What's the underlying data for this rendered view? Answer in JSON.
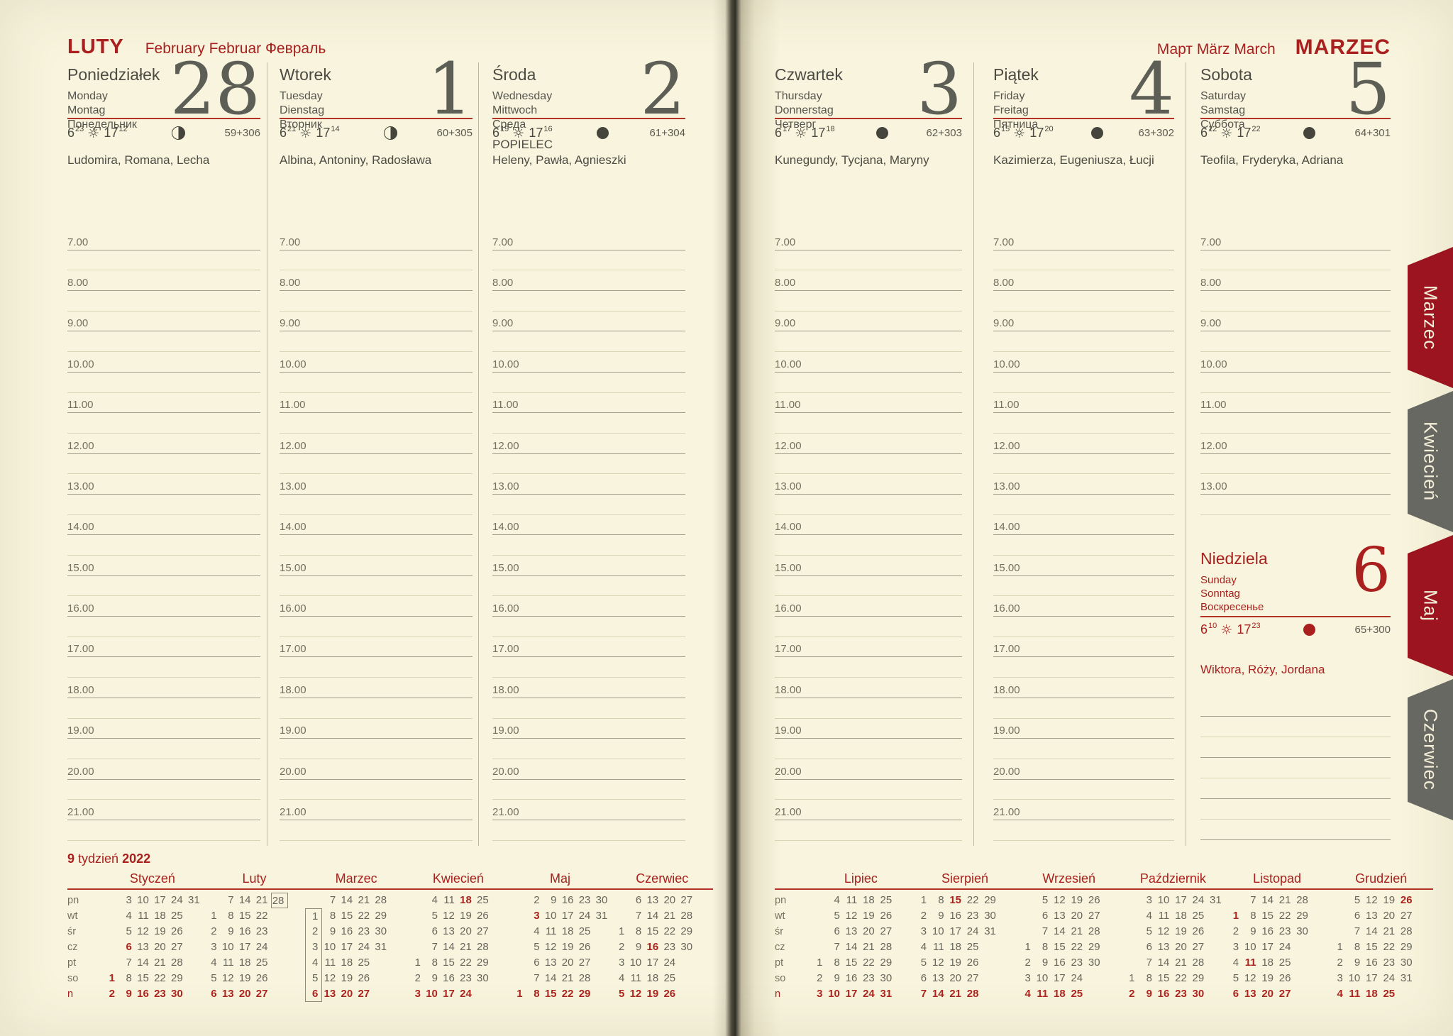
{
  "page": {
    "bg": "#f8f4dd",
    "accent": "#a9201e",
    "tab_red": "#9c1420",
    "tab_gray": "#686862"
  },
  "left_page": {
    "title": "LUTY",
    "subtitle": "February Februar Февраль",
    "week_line": {
      "number": "9",
      "word": "tydzień",
      "year": "2022"
    },
    "days": [
      {
        "key": "poniedzialek",
        "name": "Poniedziałek",
        "intl": [
          "Monday",
          "Montag",
          "Понедельник"
        ],
        "number": "28",
        "sun": {
          "rise": "6",
          "rise_m": "23",
          "set": "17",
          "set_m": "12"
        },
        "moon": "half",
        "count": "59+306",
        "holiday": "",
        "names": "Ludomira, Romana, Lecha"
      },
      {
        "key": "wtorek",
        "name": "Wtorek",
        "intl": [
          "Tuesday",
          "Dienstag",
          "Вторник"
        ],
        "number": "1",
        "sun": {
          "rise": "6",
          "rise_m": "21",
          "set": "17",
          "set_m": "14"
        },
        "moon": "half",
        "count": "60+305",
        "holiday": "",
        "names": "Albina, Antoniny, Radosława"
      },
      {
        "key": "sroda",
        "name": "Środa",
        "intl": [
          "Wednesday",
          "Mittwoch",
          "Среда"
        ],
        "number": "2",
        "sun": {
          "rise": "6",
          "rise_m": "19",
          "set": "17",
          "set_m": "16"
        },
        "moon": "new",
        "count": "61+304",
        "holiday": "POPIELEC",
        "names": "Heleny, Pawła, Agnieszki"
      }
    ],
    "mini_months": [
      {
        "name": "Styczeń",
        "rows": [
          [
            "",
            "3",
            "10",
            "17",
            "24",
            "31"
          ],
          [
            "",
            "4",
            "11",
            "18",
            "25",
            ""
          ],
          [
            "",
            "5",
            "12",
            "19",
            "26",
            ""
          ],
          [
            "",
            "6|r",
            "13",
            "20",
            "27",
            ""
          ],
          [
            "",
            "7",
            "14",
            "21",
            "28",
            ""
          ],
          [
            "1|r",
            "8",
            "15",
            "22",
            "29",
            ""
          ],
          [
            "2|r",
            "9|r",
            "16|r",
            "23|r",
            "30|r",
            ""
          ]
        ]
      },
      {
        "name": "Luty",
        "rows": [
          [
            "",
            "7",
            "14",
            "21",
            "28|s",
            ""
          ],
          [
            "1",
            "8",
            "15",
            "22",
            "",
            ""
          ],
          [
            "2",
            "9",
            "16",
            "23",
            "",
            ""
          ],
          [
            "3",
            "10",
            "17",
            "24",
            "",
            ""
          ],
          [
            "4",
            "11",
            "18",
            "25",
            "",
            ""
          ],
          [
            "5",
            "12",
            "19",
            "26",
            "",
            ""
          ],
          [
            "6|r",
            "13|r",
            "20|r",
            "27|r",
            "",
            ""
          ]
        ]
      },
      {
        "name": "Marzec",
        "rows": [
          [
            "",
            "7",
            "14",
            "21",
            "28",
            ""
          ],
          [
            "1|t",
            "8",
            "15",
            "22",
            "29",
            ""
          ],
          [
            "2|m",
            "9",
            "16",
            "23",
            "30",
            ""
          ],
          [
            "3|m",
            "10",
            "17",
            "24",
            "31",
            ""
          ],
          [
            "4|m",
            "11",
            "18",
            "25",
            "",
            ""
          ],
          [
            "5|m",
            "12",
            "19",
            "26",
            "",
            ""
          ],
          [
            "6|rb",
            "13|r",
            "20|r",
            "27|r",
            "",
            ""
          ]
        ]
      },
      {
        "name": "Kwiecień",
        "rows": [
          [
            "",
            "4",
            "11",
            "18|r",
            "25",
            ""
          ],
          [
            "",
            "5",
            "12",
            "19",
            "26",
            ""
          ],
          [
            "",
            "6",
            "13",
            "20",
            "27",
            ""
          ],
          [
            "",
            "7",
            "14",
            "21",
            "28",
            ""
          ],
          [
            "1",
            "8",
            "15",
            "22",
            "29",
            ""
          ],
          [
            "2",
            "9",
            "16",
            "23",
            "30",
            ""
          ],
          [
            "3|r",
            "10|r",
            "17|r",
            "24|r",
            "",
            ""
          ]
        ]
      },
      {
        "name": "Maj",
        "rows": [
          [
            "",
            "2",
            "9",
            "16",
            "23",
            "30"
          ],
          [
            "",
            "3|r",
            "10",
            "17",
            "24",
            "31"
          ],
          [
            "",
            "4",
            "11",
            "18",
            "25",
            ""
          ],
          [
            "",
            "5",
            "12",
            "19",
            "26",
            ""
          ],
          [
            "",
            "6",
            "13",
            "20",
            "27",
            ""
          ],
          [
            "",
            "7",
            "14",
            "21",
            "28",
            ""
          ],
          [
            "1|r",
            "8|r",
            "15|r",
            "22|r",
            "29|r",
            ""
          ]
        ]
      },
      {
        "name": "Czerwiec",
        "rows": [
          [
            "",
            "6",
            "13",
            "20",
            "27",
            ""
          ],
          [
            "",
            "7",
            "14",
            "21",
            "28",
            ""
          ],
          [
            "1",
            "8",
            "15",
            "22",
            "29",
            ""
          ],
          [
            "2",
            "9",
            "16|r",
            "23",
            "30",
            ""
          ],
          [
            "3",
            "10",
            "17",
            "24",
            "",
            ""
          ],
          [
            "4",
            "11",
            "18",
            "25",
            "",
            ""
          ],
          [
            "5|r",
            "12|r",
            "19|r",
            "26|r",
            "",
            ""
          ]
        ]
      }
    ]
  },
  "right_page": {
    "subtitle": "Март März March",
    "title": "MARZEC",
    "days": [
      {
        "key": "czwartek",
        "name": "Czwartek",
        "intl": [
          "Thursday",
          "Donnerstag",
          "Четверг"
        ],
        "number": "3",
        "sun": {
          "rise": "6",
          "rise_m": "17",
          "set": "17",
          "set_m": "18"
        },
        "moon": "new",
        "count": "62+303",
        "holiday": "",
        "names": "Kunegundy, Tycjana, Maryny"
      },
      {
        "key": "piatek",
        "name": "Piątek",
        "intl": [
          "Friday",
          "Freitag",
          "Пятница"
        ],
        "number": "4",
        "sun": {
          "rise": "6",
          "rise_m": "15",
          "set": "17",
          "set_m": "20"
        },
        "moon": "new",
        "count": "63+302",
        "holiday": "",
        "names": "Kazimierza, Eugeniusza, Łucji"
      },
      {
        "key": "sobota",
        "name": "Sobota",
        "intl": [
          "Saturday",
          "Samstag",
          "Суббота"
        ],
        "number": "5",
        "sun": {
          "rise": "6",
          "rise_m": "12",
          "set": "17",
          "set_m": "22"
        },
        "moon": "new",
        "count": "64+301",
        "holiday": "",
        "names": "Teofila, Fryderyka, Adriana"
      }
    ],
    "sunday": {
      "key": "niedziela",
      "name": "Niedziela",
      "intl": [
        "Sunday",
        "Sonntag",
        "Воскресенье"
      ],
      "number": "6",
      "sun": {
        "rise": "6",
        "rise_m": "10",
        "set": "17",
        "set_m": "23"
      },
      "moon": "new-red",
      "count": "65+300",
      "names": "Wiktora, Róży, Jordana"
    },
    "mini_months": [
      {
        "name": "Lipiec",
        "rows": [
          [
            "",
            "4",
            "11",
            "18",
            "25",
            ""
          ],
          [
            "",
            "5",
            "12",
            "19",
            "26",
            ""
          ],
          [
            "",
            "6",
            "13",
            "20",
            "27",
            ""
          ],
          [
            "",
            "7",
            "14",
            "21",
            "28",
            ""
          ],
          [
            "1",
            "8",
            "15",
            "22",
            "29",
            ""
          ],
          [
            "2",
            "9",
            "16",
            "23",
            "30",
            ""
          ],
          [
            "3|r",
            "10|r",
            "17|r",
            "24|r",
            "31|r",
            ""
          ]
        ]
      },
      {
        "name": "Sierpień",
        "rows": [
          [
            "1",
            "8",
            "15|r",
            "22",
            "29",
            ""
          ],
          [
            "2",
            "9",
            "16",
            "23",
            "30",
            ""
          ],
          [
            "3",
            "10",
            "17",
            "24",
            "31",
            ""
          ],
          [
            "4",
            "11",
            "18",
            "25",
            "",
            ""
          ],
          [
            "5",
            "12",
            "19",
            "26",
            "",
            ""
          ],
          [
            "6",
            "13",
            "20",
            "27",
            "",
            ""
          ],
          [
            "7|r",
            "14|r",
            "21|r",
            "28|r",
            "",
            ""
          ]
        ]
      },
      {
        "name": "Wrzesień",
        "rows": [
          [
            "",
            "5",
            "12",
            "19",
            "26",
            ""
          ],
          [
            "",
            "6",
            "13",
            "20",
            "27",
            ""
          ],
          [
            "",
            "7",
            "14",
            "21",
            "28",
            ""
          ],
          [
            "1",
            "8",
            "15",
            "22",
            "29",
            ""
          ],
          [
            "2",
            "9",
            "16",
            "23",
            "30",
            ""
          ],
          [
            "3",
            "10",
            "17",
            "24",
            "",
            ""
          ],
          [
            "4|r",
            "11|r",
            "18|r",
            "25|r",
            "",
            ""
          ]
        ]
      },
      {
        "name": "Październik",
        "rows": [
          [
            "",
            "3",
            "10",
            "17",
            "24",
            "31"
          ],
          [
            "",
            "4",
            "11",
            "18",
            "25",
            ""
          ],
          [
            "",
            "5",
            "12",
            "19",
            "26",
            ""
          ],
          [
            "",
            "6",
            "13",
            "20",
            "27",
            ""
          ],
          [
            "",
            "7",
            "14",
            "21",
            "28",
            ""
          ],
          [
            "1",
            "8",
            "15",
            "22",
            "29",
            ""
          ],
          [
            "2|r",
            "9|r",
            "16|r",
            "23|r",
            "30|r",
            ""
          ]
        ]
      },
      {
        "name": "Listopad",
        "rows": [
          [
            "",
            "7",
            "14",
            "21",
            "28",
            ""
          ],
          [
            "1|r",
            "8",
            "15",
            "22",
            "29",
            ""
          ],
          [
            "2",
            "9",
            "16",
            "23",
            "30",
            ""
          ],
          [
            "3",
            "10",
            "17",
            "24",
            "",
            ""
          ],
          [
            "4",
            "11|r",
            "18",
            "25",
            "",
            ""
          ],
          [
            "5",
            "12",
            "19",
            "26",
            "",
            ""
          ],
          [
            "6|r",
            "13|r",
            "20|r",
            "27|r",
            "",
            ""
          ]
        ]
      },
      {
        "name": "Grudzień",
        "rows": [
          [
            "",
            "5",
            "12",
            "19",
            "26|r",
            ""
          ],
          [
            "",
            "6",
            "13",
            "20",
            "27",
            ""
          ],
          [
            "",
            "7",
            "14",
            "21",
            "28",
            ""
          ],
          [
            "1",
            "8",
            "15",
            "22",
            "29",
            ""
          ],
          [
            "2",
            "9",
            "16",
            "23",
            "30",
            ""
          ],
          [
            "3",
            "10",
            "17",
            "24",
            "31",
            ""
          ],
          [
            "4|r",
            "11|r",
            "18|r",
            "25|r",
            "",
            ""
          ]
        ]
      }
    ]
  },
  "weekday_labels": [
    "pn",
    "wt",
    "śr",
    "cz",
    "pt",
    "so",
    "n"
  ],
  "hours_full": [
    "7.00",
    "8.00",
    "9.00",
    "10.00",
    "11.00",
    "12.00",
    "13.00",
    "14.00",
    "15.00",
    "16.00",
    "17.00",
    "18.00",
    "19.00",
    "20.00",
    "21.00"
  ],
  "hours_sat": [
    "7.00",
    "8.00",
    "9.00",
    "10.00",
    "11.00",
    "12.00",
    "13.00"
  ],
  "tabs": [
    {
      "label": "Marzec",
      "color": "red"
    },
    {
      "label": "Kwiecień",
      "color": "gray"
    },
    {
      "label": "Maj",
      "color": "red"
    },
    {
      "label": "Czerwiec",
      "color": "gray"
    }
  ]
}
